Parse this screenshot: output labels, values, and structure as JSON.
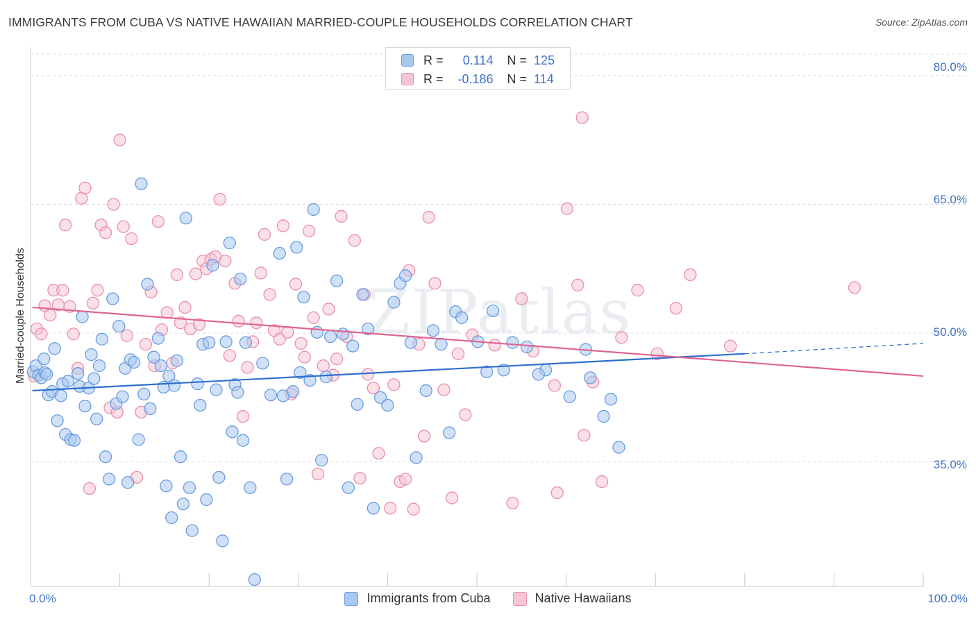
{
  "title": "IMMIGRANTS FROM CUBA VS NATIVE HAWAIIAN MARRIED-COUPLE HOUSEHOLDS CORRELATION CHART",
  "source": "Source: ZipAtlas.com",
  "watermark": "ZIPatlas",
  "colors": {
    "cuba_fill": "#a9c8f0",
    "cuba_stroke": "#6a9ce0",
    "cuba_line": "#2f6fd0",
    "hawaii_fill": "#f6c6d4",
    "hawaii_stroke": "#e98fae",
    "hawaii_line": "#e0648f",
    "tick_text": "#3f72c9",
    "grid": "#dcdcdc"
  },
  "legend_top": {
    "rows": [
      {
        "r_label": "R =",
        "r_value": " 0.114",
        "n_label": "N =",
        "n_value": "125"
      },
      {
        "r_label": "R =",
        "r_value": "-0.186",
        "n_label": "N =",
        "n_value": "114"
      }
    ]
  },
  "chart_data": {
    "type": "scatter",
    "title": "IMMIGRANTS FROM CUBA VS NATIVE HAWAIIAN MARRIED-COUPLE HOUSEHOLDS CORRELATION CHART",
    "xlabel": "",
    "ylabel": "Married-couple Households",
    "xlim": [
      0,
      100
    ],
    "ylim": [
      20.5,
      82.5
    ],
    "x_tick_labels": [
      "0.0%",
      "100.0%"
    ],
    "y_ticks": [
      35,
      50,
      65,
      80
    ],
    "y_tick_labels": [
      "35.0%",
      "50.0%",
      "65.0%",
      "80.0%"
    ],
    "legend_position": "bottom-center",
    "series": [
      {
        "name": "Immigrants from Cuba",
        "R": 0.114,
        "N": 125,
        "trend": {
          "x_start": 0.2,
          "y_start": 43.3,
          "x_end": 80,
          "y_end": 47.6,
          "dashed_to_x": 100,
          "dashed_to_y": 48.8
        },
        "points": [
          [
            0.3,
            45.5
          ],
          [
            0.6,
            46.2
          ],
          [
            0.9,
            45.1
          ],
          [
            1.2,
            44.8
          ],
          [
            1.5,
            47.0
          ],
          [
            1.6,
            45.4
          ],
          [
            1.8,
            45.2
          ],
          [
            2.0,
            42.8
          ],
          [
            2.4,
            43.2
          ],
          [
            2.7,
            48.2
          ],
          [
            3.0,
            39.8
          ],
          [
            3.4,
            42.7
          ],
          [
            3.6,
            44.1
          ],
          [
            3.9,
            38.2
          ],
          [
            4.2,
            44.4
          ],
          [
            4.5,
            37.6
          ],
          [
            4.9,
            37.5
          ],
          [
            5.3,
            45.3
          ],
          [
            5.5,
            43.8
          ],
          [
            5.8,
            51.9
          ],
          [
            6.1,
            41.5
          ],
          [
            6.5,
            43.6
          ],
          [
            6.8,
            47.5
          ],
          [
            7.1,
            44.7
          ],
          [
            7.4,
            40.0
          ],
          [
            7.7,
            46.2
          ],
          [
            8.0,
            49.3
          ],
          [
            8.4,
            35.6
          ],
          [
            8.8,
            33.0
          ],
          [
            9.2,
            54.0
          ],
          [
            9.6,
            41.8
          ],
          [
            9.9,
            50.8
          ],
          [
            10.3,
            42.6
          ],
          [
            10.6,
            45.9
          ],
          [
            10.9,
            32.6
          ],
          [
            11.2,
            46.9
          ],
          [
            11.6,
            46.6
          ],
          [
            12.1,
            37.6
          ],
          [
            12.4,
            67.4
          ],
          [
            12.7,
            42.9
          ],
          [
            13.1,
            55.7
          ],
          [
            13.4,
            41.2
          ],
          [
            13.8,
            47.2
          ],
          [
            14.3,
            49.4
          ],
          [
            14.6,
            46.2
          ],
          [
            14.9,
            43.7
          ],
          [
            15.2,
            32.2
          ],
          [
            15.5,
            45.0
          ],
          [
            15.8,
            28.5
          ],
          [
            16.1,
            43.9
          ],
          [
            16.4,
            46.8
          ],
          [
            16.8,
            35.6
          ],
          [
            17.1,
            30.1
          ],
          [
            17.4,
            63.4
          ],
          [
            17.8,
            32.0
          ],
          [
            18.1,
            27.0
          ],
          [
            18.7,
            44.1
          ],
          [
            19.0,
            41.6
          ],
          [
            19.3,
            48.7
          ],
          [
            19.7,
            30.6
          ],
          [
            20.0,
            48.9
          ],
          [
            20.4,
            57.9
          ],
          [
            20.8,
            43.4
          ],
          [
            21.1,
            33.2
          ],
          [
            21.5,
            25.8
          ],
          [
            21.9,
            49.0
          ],
          [
            22.3,
            60.5
          ],
          [
            22.6,
            38.5
          ],
          [
            22.9,
            44.0
          ],
          [
            23.2,
            43.1
          ],
          [
            23.5,
            56.3
          ],
          [
            23.8,
            37.5
          ],
          [
            24.1,
            48.9
          ],
          [
            24.6,
            32.0
          ],
          [
            25.1,
            21.3
          ],
          [
            26.0,
            46.5
          ],
          [
            26.9,
            42.8
          ],
          [
            27.9,
            59.3
          ],
          [
            28.3,
            42.7
          ],
          [
            28.7,
            33.0
          ],
          [
            29.4,
            43.2
          ],
          [
            29.8,
            60.0
          ],
          [
            30.2,
            45.4
          ],
          [
            30.6,
            54.2
          ],
          [
            31.3,
            44.5
          ],
          [
            31.7,
            64.4
          ],
          [
            32.1,
            50.1
          ],
          [
            32.6,
            35.2
          ],
          [
            33.1,
            44.9
          ],
          [
            33.6,
            49.6
          ],
          [
            34.3,
            56.1
          ],
          [
            35.0,
            49.9
          ],
          [
            35.6,
            32.0
          ],
          [
            36.1,
            48.5
          ],
          [
            36.6,
            41.7
          ],
          [
            37.2,
            54.5
          ],
          [
            37.8,
            50.5
          ],
          [
            38.4,
            29.6
          ],
          [
            39.2,
            42.5
          ],
          [
            40.0,
            41.6
          ],
          [
            40.7,
            53.6
          ],
          [
            41.4,
            55.8
          ],
          [
            42.0,
            56.7
          ],
          [
            42.6,
            48.9
          ],
          [
            43.2,
            35.5
          ],
          [
            44.3,
            43.3
          ],
          [
            45.1,
            50.3
          ],
          [
            46.0,
            48.7
          ],
          [
            46.9,
            38.4
          ],
          [
            47.6,
            52.5
          ],
          [
            48.3,
            51.8
          ],
          [
            50.1,
            49.0
          ],
          [
            51.1,
            45.5
          ],
          [
            51.8,
            52.6
          ],
          [
            53.0,
            45.7
          ],
          [
            54.0,
            48.9
          ],
          [
            55.6,
            48.4
          ],
          [
            57.7,
            45.7
          ],
          [
            60.4,
            42.6
          ],
          [
            62.2,
            48.1
          ],
          [
            64.2,
            40.3
          ],
          [
            65.0,
            42.3
          ],
          [
            65.9,
            36.7
          ],
          [
            62.7,
            44.8
          ],
          [
            56.9,
            45.2
          ]
        ]
      },
      {
        "name": "Native Hawaiians",
        "R": -0.186,
        "N": 114,
        "trend": {
          "x_start": 0.2,
          "y_start": 53.0,
          "x_end": 100,
          "y_end": 45.0
        },
        "points": [
          [
            0.4,
            45.0
          ],
          [
            0.7,
            50.5
          ],
          [
            1.2,
            49.9
          ],
          [
            1.6,
            53.2
          ],
          [
            2.2,
            52.1
          ],
          [
            2.6,
            55.0
          ],
          [
            3.1,
            53.3
          ],
          [
            3.6,
            55.0
          ],
          [
            3.9,
            62.6
          ],
          [
            4.4,
            53.1
          ],
          [
            4.8,
            49.9
          ],
          [
            5.3,
            45.9
          ],
          [
            5.7,
            65.7
          ],
          [
            6.1,
            66.9
          ],
          [
            6.6,
            31.9
          ],
          [
            7.0,
            53.5
          ],
          [
            7.5,
            55.0
          ],
          [
            7.9,
            62.6
          ],
          [
            8.4,
            61.7
          ],
          [
            8.9,
            41.3
          ],
          [
            9.3,
            65.0
          ],
          [
            9.7,
            40.8
          ],
          [
            10.0,
            72.5
          ],
          [
            10.4,
            62.4
          ],
          [
            10.8,
            49.7
          ],
          [
            11.3,
            61.0
          ],
          [
            11.9,
            33.2
          ],
          [
            12.4,
            40.8
          ],
          [
            12.9,
            48.7
          ],
          [
            13.5,
            54.8
          ],
          [
            13.9,
            46.2
          ],
          [
            14.3,
            63.0
          ],
          [
            14.7,
            50.4
          ],
          [
            15.3,
            52.4
          ],
          [
            15.9,
            46.5
          ],
          [
            16.4,
            56.8
          ],
          [
            16.8,
            51.2
          ],
          [
            17.3,
            53.0
          ],
          [
            17.9,
            50.5
          ],
          [
            18.5,
            56.9
          ],
          [
            18.9,
            51.0
          ],
          [
            19.3,
            58.4
          ],
          [
            19.7,
            57.5
          ],
          [
            20.2,
            58.6
          ],
          [
            20.7,
            58.9
          ],
          [
            21.2,
            65.6
          ],
          [
            21.8,
            58.4
          ],
          [
            22.3,
            47.4
          ],
          [
            22.9,
            55.8
          ],
          [
            23.3,
            51.4
          ],
          [
            23.8,
            40.3
          ],
          [
            24.3,
            46.0
          ],
          [
            24.9,
            49.0
          ],
          [
            25.3,
            51.2
          ],
          [
            25.8,
            57.0
          ],
          [
            26.2,
            61.5
          ],
          [
            26.8,
            54.5
          ],
          [
            27.3,
            50.3
          ],
          [
            27.9,
            49.3
          ],
          [
            28.3,
            62.5
          ],
          [
            28.8,
            50.1
          ],
          [
            29.2,
            42.9
          ],
          [
            29.7,
            55.7
          ],
          [
            30.3,
            48.8
          ],
          [
            30.7,
            47.2
          ],
          [
            31.2,
            61.9
          ],
          [
            31.7,
            51.8
          ],
          [
            32.2,
            33.6
          ],
          [
            32.8,
            46.2
          ],
          [
            33.4,
            52.8
          ],
          [
            33.9,
            45.1
          ],
          [
            34.3,
            47.0
          ],
          [
            34.8,
            63.6
          ],
          [
            35.4,
            49.6
          ],
          [
            36.3,
            60.8
          ],
          [
            36.9,
            33.1
          ],
          [
            37.4,
            54.5
          ],
          [
            37.8,
            45.2
          ],
          [
            38.4,
            43.6
          ],
          [
            39.0,
            36.0
          ],
          [
            40.3,
            29.6
          ],
          [
            40.7,
            44.0
          ],
          [
            41.4,
            32.7
          ],
          [
            42.0,
            33.0
          ],
          [
            42.4,
            57.3
          ],
          [
            42.9,
            29.5
          ],
          [
            43.5,
            48.7
          ],
          [
            44.1,
            38.0
          ],
          [
            44.6,
            63.5
          ],
          [
            45.3,
            55.8
          ],
          [
            46.3,
            43.4
          ],
          [
            47.2,
            30.8
          ],
          [
            47.9,
            47.6
          ],
          [
            48.7,
            40.5
          ],
          [
            49.5,
            49.8
          ],
          [
            52.0,
            48.6
          ],
          [
            54.0,
            30.2
          ],
          [
            55.0,
            54.0
          ],
          [
            56.3,
            47.9
          ],
          [
            58.7,
            43.9
          ],
          [
            59.0,
            31.4
          ],
          [
            60.1,
            64.5
          ],
          [
            61.3,
            55.6
          ],
          [
            62.0,
            38.1
          ],
          [
            63.0,
            44.3
          ],
          [
            64.0,
            32.7
          ],
          [
            66.2,
            49.5
          ],
          [
            68.0,
            55.0
          ],
          [
            70.2,
            47.6
          ],
          [
            72.3,
            52.9
          ],
          [
            73.9,
            56.8
          ],
          [
            78.4,
            48.5
          ],
          [
            92.3,
            55.3
          ],
          [
            61.8,
            75.1
          ]
        ]
      }
    ]
  },
  "bottom_legend": {
    "items": [
      {
        "label": "Immigrants from Cuba"
      },
      {
        "label": "Native Hawaiians"
      }
    ]
  }
}
